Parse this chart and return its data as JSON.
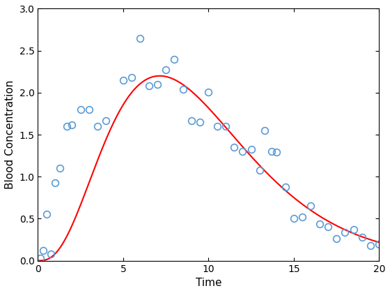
{
  "scatter_x": [
    0.15,
    0.3,
    0.5,
    0.75,
    1.0,
    1.3,
    1.7,
    2.0,
    2.5,
    3.0,
    3.5,
    4.0,
    5.0,
    5.5,
    6.0,
    6.5,
    7.0,
    7.5,
    8.0,
    8.5,
    9.0,
    9.5,
    10.0,
    10.5,
    11.0,
    11.5,
    12.0,
    12.5,
    13.0,
    13.3,
    13.7,
    14.0,
    14.5,
    15.0,
    15.5,
    16.0,
    16.5,
    17.0,
    17.5,
    18.0,
    18.5,
    19.0,
    19.5,
    20.0
  ],
  "scatter_y": [
    0.03,
    0.12,
    0.55,
    0.08,
    0.93,
    1.1,
    1.6,
    1.62,
    1.8,
    1.8,
    1.6,
    1.67,
    2.15,
    2.18,
    2.65,
    2.08,
    2.1,
    2.27,
    2.4,
    2.04,
    1.67,
    1.65,
    2.01,
    1.6,
    1.6,
    1.35,
    1.3,
    1.33,
    1.08,
    1.55,
    1.3,
    1.29,
    0.88,
    0.5,
    0.52,
    0.65,
    0.44,
    0.4,
    0.26,
    0.34,
    0.37,
    0.28,
    0.18,
    0.2
  ],
  "scatter_color": "#5B9BD5",
  "line_color": "#FF0000",
  "xlabel": "Time",
  "ylabel": "Blood Concentration",
  "xlim": [
    0,
    20
  ],
  "ylim": [
    0,
    3
  ],
  "yticks": [
    0,
    0.5,
    1.0,
    1.5,
    2.0,
    2.5,
    3.0
  ],
  "xticks": [
    0,
    5,
    10,
    15,
    20
  ],
  "alpha": 1.0,
  "k": 0.133,
  "marker_size": 7,
  "line_width": 1.5,
  "figwidth": 5.6,
  "figheight": 4.2,
  "dpi": 100
}
